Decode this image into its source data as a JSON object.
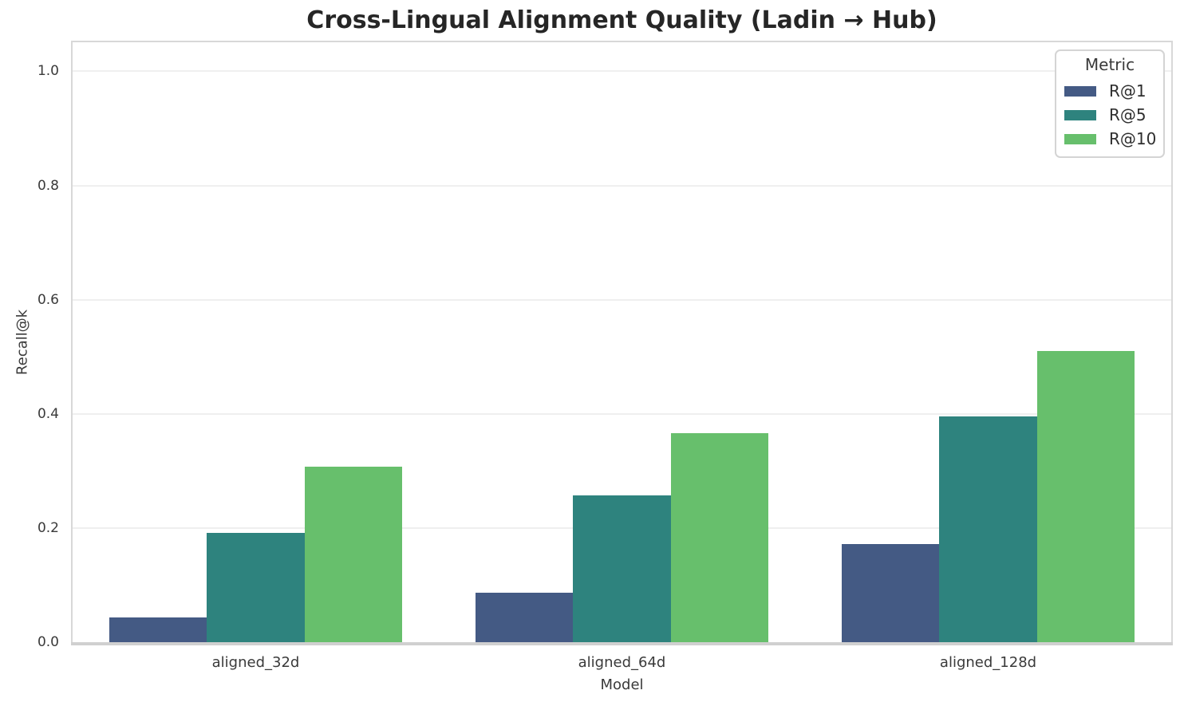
{
  "chart_data": {
    "type": "bar",
    "title": "Cross-Lingual Alignment Quality (Ladin → Hub)",
    "xlabel": "Model",
    "ylabel": "Recall@k",
    "categories": [
      "aligned_32d",
      "aligned_64d",
      "aligned_128d"
    ],
    "series": [
      {
        "name": "R@1",
        "color": "#445A84",
        "values": [
          0.044,
          0.087,
          0.172
        ]
      },
      {
        "name": "R@5",
        "color": "#2E837E",
        "values": [
          0.192,
          0.257,
          0.396
        ]
      },
      {
        "name": "R@10",
        "color": "#67BF6C",
        "values": [
          0.307,
          0.366,
          0.51
        ]
      }
    ],
    "ylim": [
      0,
      1.051
    ],
    "yticks": [
      {
        "v": 0.0,
        "label": "0.0"
      },
      {
        "v": 0.2,
        "label": "0.2"
      },
      {
        "v": 0.4,
        "label": "0.4"
      },
      {
        "v": 0.6,
        "label": "0.6"
      },
      {
        "v": 0.8,
        "label": "0.8"
      },
      {
        "v": 1.0,
        "label": "1.0"
      }
    ],
    "grid": true,
    "legend": {
      "title": "Metric",
      "position": "upper right"
    },
    "colors": {
      "grid": "#EFEFEF",
      "spine": "#D8D8D8",
      "bottom_spine": "#D0D0D0",
      "tick_text": "#3A3A3A",
      "title_text": "#262626",
      "background": "#FFFFFF"
    }
  }
}
